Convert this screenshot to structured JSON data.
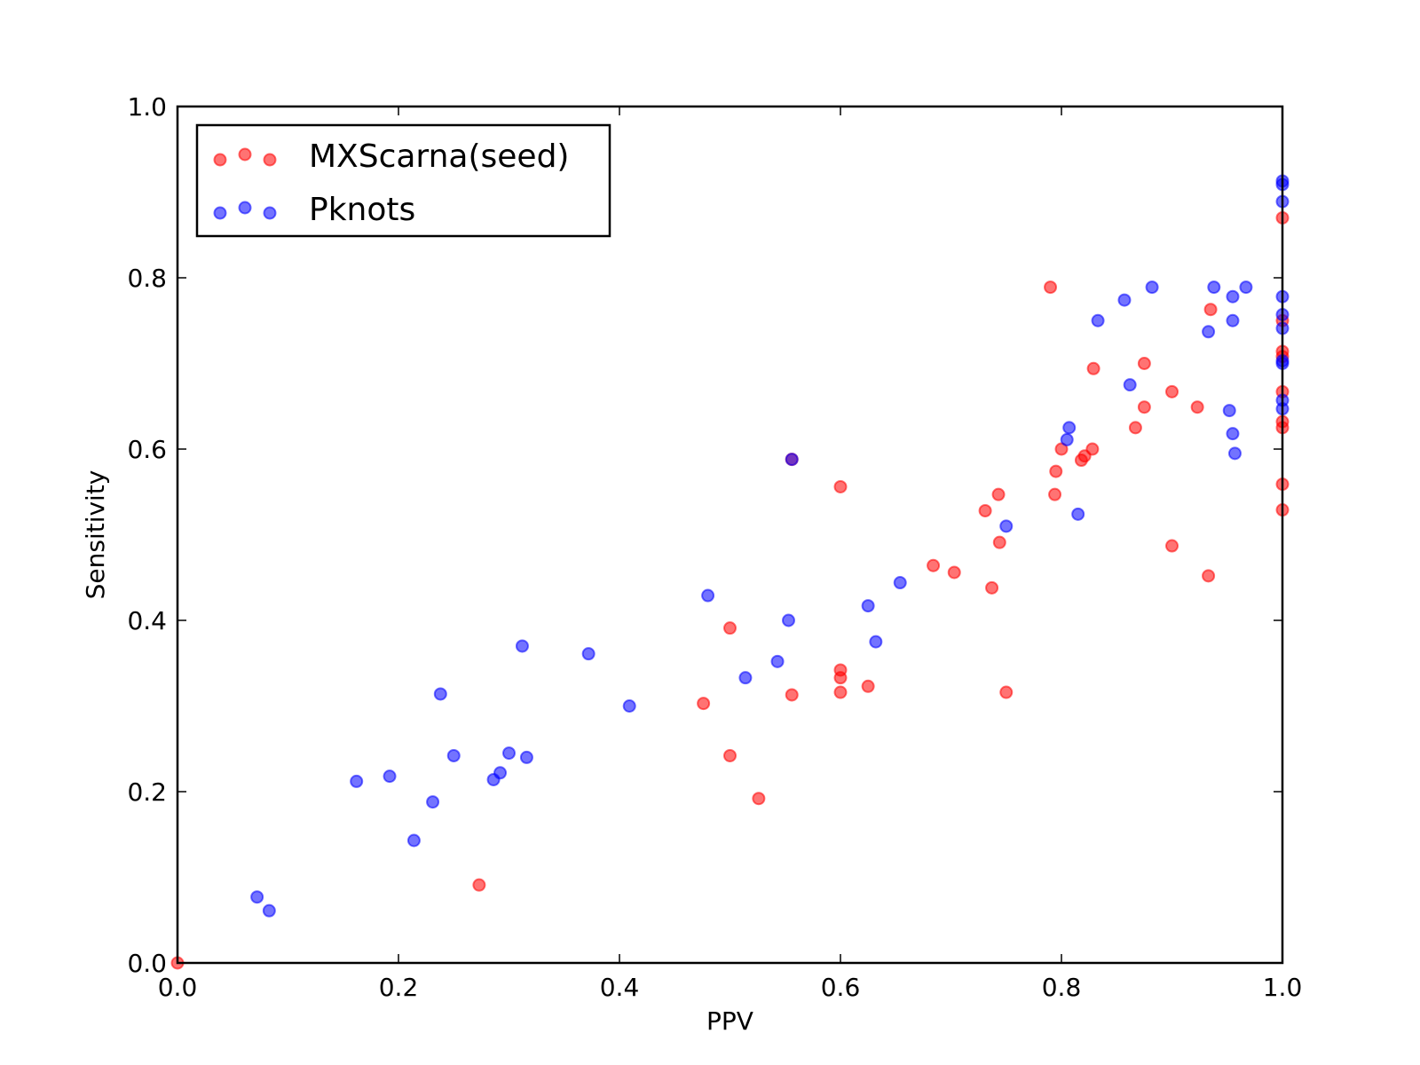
{
  "chart_data": {
    "type": "scatter",
    "title": "",
    "xlabel": "PPV",
    "ylabel": "Sensitivity",
    "xlim": [
      0.0,
      1.0
    ],
    "ylim": [
      0.0,
      1.0
    ],
    "xticks": [
      "0.0",
      "0.2",
      "0.4",
      "0.6",
      "0.8",
      "1.0"
    ],
    "yticks": [
      "0.0",
      "0.2",
      "0.4",
      "0.6",
      "0.8",
      "1.0"
    ],
    "grid": false,
    "legend_position": "upper-left",
    "series": [
      {
        "name": "MXScarna(seed)",
        "color": "#ff0000",
        "opacity": 0.55,
        "points": [
          [
            0.0,
            0.0
          ],
          [
            0.273,
            0.091
          ],
          [
            0.476,
            0.303
          ],
          [
            0.5,
            0.242
          ],
          [
            0.5,
            0.391
          ],
          [
            0.526,
            0.192
          ],
          [
            0.556,
            0.313
          ],
          [
            0.556,
            0.588
          ],
          [
            0.6,
            0.316
          ],
          [
            0.6,
            0.333
          ],
          [
            0.6,
            0.342
          ],
          [
            0.6,
            0.556
          ],
          [
            0.625,
            0.323
          ],
          [
            0.684,
            0.464
          ],
          [
            0.703,
            0.456
          ],
          [
            0.731,
            0.528
          ],
          [
            0.737,
            0.438
          ],
          [
            0.743,
            0.547
          ],
          [
            0.744,
            0.491
          ],
          [
            0.75,
            0.316
          ],
          [
            0.79,
            0.789
          ],
          [
            0.794,
            0.547
          ],
          [
            0.795,
            0.574
          ],
          [
            0.8,
            0.6
          ],
          [
            0.818,
            0.587
          ],
          [
            0.821,
            0.592
          ],
          [
            0.828,
            0.6
          ],
          [
            0.829,
            0.694
          ],
          [
            0.867,
            0.625
          ],
          [
            0.875,
            0.649
          ],
          [
            0.875,
            0.7
          ],
          [
            0.9,
            0.487
          ],
          [
            0.9,
            0.667
          ],
          [
            0.923,
            0.649
          ],
          [
            0.933,
            0.452
          ],
          [
            0.935,
            0.763
          ],
          [
            1.0,
            0.87
          ],
          [
            1.0,
            0.75
          ],
          [
            1.0,
            0.714
          ],
          [
            1.0,
            0.708
          ],
          [
            1.0,
            0.667
          ],
          [
            1.0,
            0.632
          ],
          [
            1.0,
            0.625
          ],
          [
            1.0,
            0.559
          ],
          [
            1.0,
            0.529
          ]
        ]
      },
      {
        "name": "Pknots",
        "color": "#0000ff",
        "opacity": 0.55,
        "points": [
          [
            0.072,
            0.077
          ],
          [
            0.083,
            0.061
          ],
          [
            0.162,
            0.212
          ],
          [
            0.192,
            0.218
          ],
          [
            0.214,
            0.143
          ],
          [
            0.231,
            0.188
          ],
          [
            0.238,
            0.314
          ],
          [
            0.25,
            0.242
          ],
          [
            0.286,
            0.214
          ],
          [
            0.292,
            0.222
          ],
          [
            0.3,
            0.245
          ],
          [
            0.312,
            0.37
          ],
          [
            0.316,
            0.24
          ],
          [
            0.372,
            0.361
          ],
          [
            0.409,
            0.3
          ],
          [
            0.48,
            0.429
          ],
          [
            0.514,
            0.333
          ],
          [
            0.543,
            0.352
          ],
          [
            0.553,
            0.4
          ],
          [
            0.556,
            0.588
          ],
          [
            0.625,
            0.417
          ],
          [
            0.632,
            0.375
          ],
          [
            0.654,
            0.444
          ],
          [
            0.75,
            0.51
          ],
          [
            0.805,
            0.611
          ],
          [
            0.807,
            0.625
          ],
          [
            0.815,
            0.524
          ],
          [
            0.833,
            0.75
          ],
          [
            0.857,
            0.774
          ],
          [
            0.862,
            0.675
          ],
          [
            0.882,
            0.789
          ],
          [
            0.933,
            0.737
          ],
          [
            0.938,
            0.789
          ],
          [
            0.952,
            0.645
          ],
          [
            0.955,
            0.75
          ],
          [
            0.955,
            0.778
          ],
          [
            0.955,
            0.618
          ],
          [
            0.957,
            0.595
          ],
          [
            0.967,
            0.789
          ],
          [
            1.0,
            0.913
          ],
          [
            1.0,
            0.909
          ],
          [
            1.0,
            0.889
          ],
          [
            1.0,
            0.778
          ],
          [
            1.0,
            0.757
          ],
          [
            1.0,
            0.741
          ],
          [
            1.0,
            0.703
          ],
          [
            1.0,
            0.7
          ],
          [
            1.0,
            0.657
          ],
          [
            1.0,
            0.647
          ]
        ]
      }
    ]
  }
}
